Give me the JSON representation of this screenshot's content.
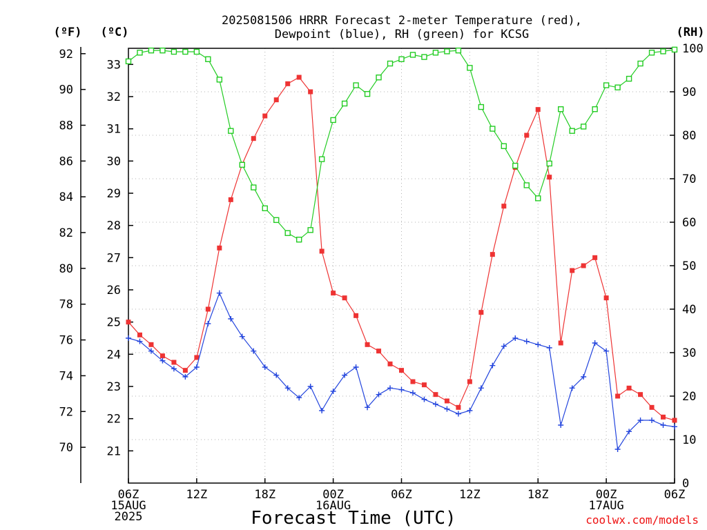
{
  "title_lines": [
    "2025081506 HRRR Forecast 2-meter Temperature (red),",
    "Dewpoint (blue), RH (green) for KCSG"
  ],
  "credit": "coolwx.com/models",
  "units": {
    "fahrenheit": "(ºF)",
    "celsius": "(ºC)",
    "rh": "(RH)"
  },
  "colors": {
    "temperature": "#ee3333",
    "dewpoint": "#2244dd",
    "rh": "#22cc22",
    "credit": "#ee1111"
  },
  "chart_data": {
    "type": "line",
    "xlabel": "Forecast Time (UTC)",
    "x_hours": [
      0,
      1,
      2,
      3,
      4,
      5,
      6,
      7,
      8,
      9,
      10,
      11,
      12,
      13,
      14,
      15,
      16,
      17,
      18,
      19,
      20,
      21,
      22,
      23,
      24,
      25,
      26,
      27,
      28,
      29,
      30,
      31,
      32,
      33,
      34,
      35,
      36,
      37,
      38,
      39,
      40,
      41,
      42,
      43,
      44,
      45,
      46,
      47,
      48
    ],
    "x_ticks": [
      {
        "hour": 0,
        "lines": [
          "06Z",
          "15AUG",
          "2025"
        ]
      },
      {
        "hour": 6,
        "lines": [
          "12Z"
        ]
      },
      {
        "hour": 12,
        "lines": [
          "18Z"
        ]
      },
      {
        "hour": 18,
        "lines": [
          "00Z",
          "16AUG"
        ]
      },
      {
        "hour": 24,
        "lines": [
          "06Z"
        ]
      },
      {
        "hour": 30,
        "lines": [
          "12Z"
        ]
      },
      {
        "hour": 36,
        "lines": [
          "18Z"
        ]
      },
      {
        "hour": 42,
        "lines": [
          "00Z",
          "17AUG"
        ]
      },
      {
        "hour": 48,
        "lines": [
          "06Z"
        ]
      }
    ],
    "y_left_celsius": {
      "range": [
        20,
        33.5
      ],
      "ticks": [
        21,
        22,
        23,
        24,
        25,
        26,
        27,
        28,
        29,
        30,
        31,
        32,
        33
      ]
    },
    "y_left_fahrenheit": {
      "ticks": [
        70,
        72,
        74,
        76,
        78,
        80,
        82,
        84,
        86,
        88,
        90,
        92
      ]
    },
    "y_right_rh": {
      "range": [
        0,
        100
      ],
      "ticks": [
        0,
        10,
        20,
        30,
        40,
        50,
        60,
        70,
        80,
        90,
        100
      ]
    },
    "grid": true,
    "series": [
      {
        "name": "Temperature",
        "axis": "celsius",
        "marker": "filled-square",
        "values": [
          25.0,
          24.6,
          24.3,
          23.95,
          23.75,
          23.5,
          23.9,
          25.4,
          27.3,
          28.8,
          29.9,
          30.7,
          31.4,
          31.9,
          32.4,
          32.6,
          32.15,
          27.2,
          25.9,
          25.75,
          25.2,
          24.3,
          24.1,
          23.7,
          23.5,
          23.15,
          23.05,
          22.75,
          22.55,
          22.35,
          23.15,
          25.3,
          27.1,
          28.6,
          29.8,
          30.8,
          31.6,
          29.5,
          24.35,
          26.6,
          26.75,
          27.0,
          25.75,
          22.7,
          22.95,
          22.75,
          22.35,
          22.05,
          21.95
        ]
      },
      {
        "name": "Dewpoint",
        "axis": "celsius",
        "marker": "plus",
        "values": [
          24.5,
          24.4,
          24.1,
          23.8,
          23.55,
          23.3,
          23.6,
          24.95,
          25.9,
          25.1,
          24.55,
          24.1,
          23.6,
          23.35,
          22.95,
          22.65,
          23.0,
          22.25,
          22.85,
          23.35,
          23.6,
          22.35,
          22.75,
          22.95,
          22.9,
          22.8,
          22.6,
          22.45,
          22.3,
          22.15,
          22.25,
          22.95,
          23.65,
          24.25,
          24.5,
          24.4,
          24.3,
          24.2,
          21.8,
          22.95,
          23.3,
          24.35,
          24.1,
          21.05,
          21.6,
          21.95,
          21.95,
          21.8,
          21.75
        ]
      },
      {
        "name": "RH",
        "axis": "rh",
        "marker": "open-square",
        "values": [
          97,
          99,
          99.5,
          99.5,
          99.2,
          99.2,
          99.2,
          97.5,
          92.8,
          81,
          73.2,
          68,
          63.2,
          60.5,
          57.5,
          56,
          58.2,
          74.5,
          83.5,
          87.3,
          91.5,
          89.5,
          93.3,
          96.5,
          97.5,
          98.5,
          98,
          99,
          99.3,
          99.5,
          95.5,
          86.5,
          81.5,
          77.5,
          73,
          68.5,
          65.5,
          73.5,
          86,
          81,
          82,
          86,
          91.5,
          91,
          93,
          96.5,
          99,
          99.3,
          99.7
        ]
      }
    ]
  }
}
